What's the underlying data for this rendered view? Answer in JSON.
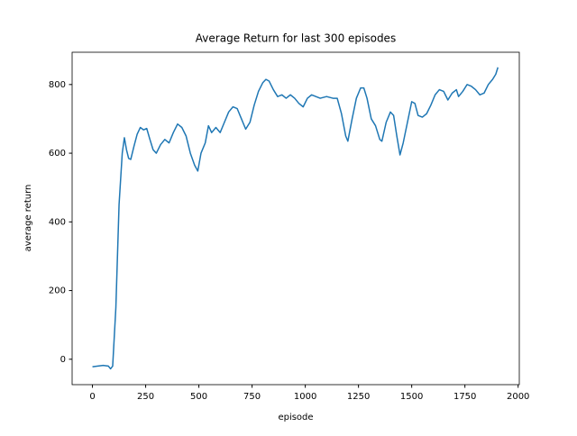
{
  "chart_data": {
    "type": "line",
    "title": "Average Return for last 300 episodes",
    "xlabel": "episode",
    "ylabel": "average return",
    "x": [
      0,
      50,
      75,
      85,
      95,
      110,
      125,
      140,
      150,
      160,
      170,
      180,
      195,
      210,
      225,
      240,
      255,
      270,
      285,
      300,
      320,
      340,
      360,
      380,
      400,
      420,
      440,
      460,
      480,
      495,
      510,
      530,
      545,
      560,
      580,
      600,
      620,
      640,
      660,
      680,
      700,
      720,
      740,
      760,
      780,
      800,
      815,
      830,
      850,
      870,
      890,
      910,
      930,
      950,
      970,
      990,
      1010,
      1030,
      1050,
      1070,
      1100,
      1130,
      1150,
      1170,
      1190,
      1200,
      1220,
      1240,
      1260,
      1275,
      1290,
      1310,
      1330,
      1350,
      1360,
      1380,
      1400,
      1415,
      1430,
      1445,
      1460,
      1480,
      1500,
      1515,
      1530,
      1550,
      1570,
      1590,
      1610,
      1630,
      1650,
      1670,
      1690,
      1710,
      1720,
      1740,
      1760,
      1780,
      1800,
      1820,
      1840,
      1860,
      1880,
      1895,
      1905
    ],
    "series": [
      {
        "name": "average return",
        "color": "#1f77b4",
        "values": [
          -22,
          -18,
          -20,
          -28,
          -20,
          150,
          450,
          600,
          645,
          610,
          585,
          582,
          620,
          655,
          675,
          668,
          672,
          640,
          610,
          600,
          625,
          640,
          630,
          660,
          685,
          675,
          650,
          600,
          565,
          548,
          600,
          630,
          680,
          660,
          675,
          660,
          690,
          720,
          735,
          730,
          700,
          670,
          690,
          740,
          780,
          805,
          815,
          810,
          785,
          765,
          770,
          760,
          770,
          760,
          745,
          735,
          760,
          770,
          765,
          760,
          765,
          760,
          760,
          715,
          650,
          635,
          700,
          760,
          790,
          790,
          760,
          700,
          680,
          640,
          635,
          690,
          720,
          710,
          650,
          595,
          630,
          690,
          750,
          745,
          710,
          705,
          715,
          740,
          770,
          785,
          780,
          755,
          775,
          785,
          765,
          780,
          800,
          795,
          785,
          770,
          775,
          800,
          815,
          830,
          850
        ]
      }
    ],
    "xlim": [
      -95.5,
      2005.5
    ],
    "ylim": [
      -74,
      894
    ],
    "xticks": [
      0,
      250,
      500,
      750,
      1000,
      1250,
      1500,
      1750,
      2000
    ],
    "yticks": [
      0,
      200,
      400,
      600,
      800
    ]
  }
}
